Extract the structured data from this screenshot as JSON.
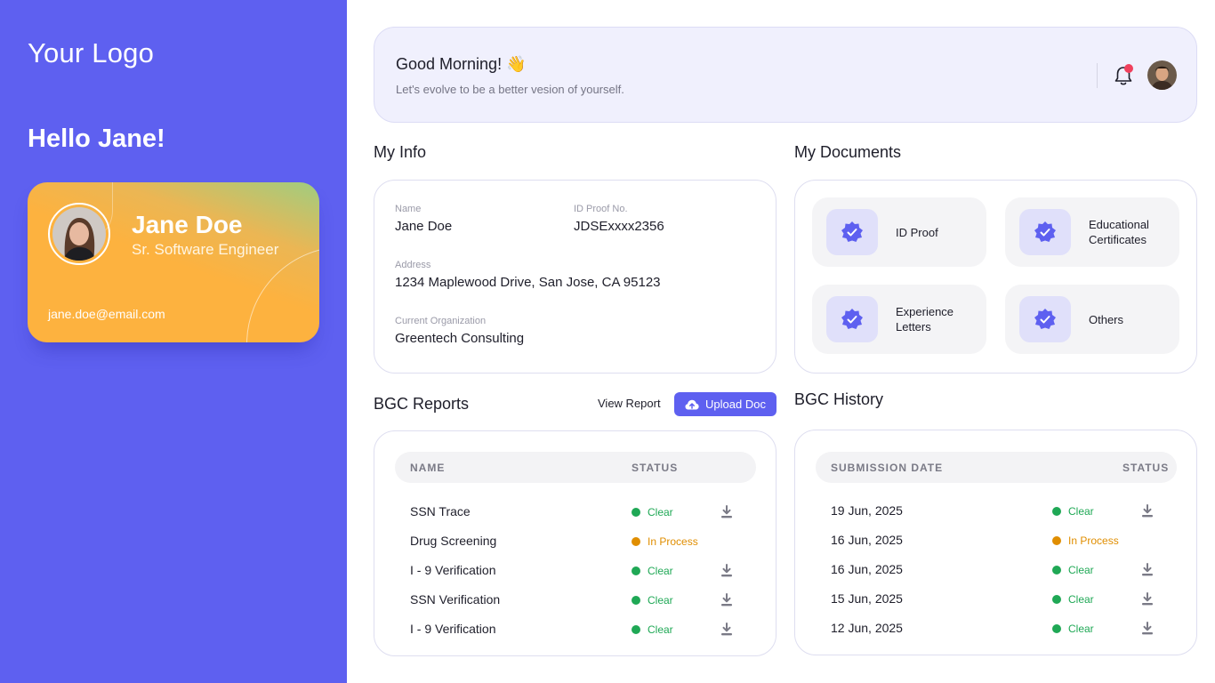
{
  "sidebar": {
    "logo": "Your Logo",
    "hello": "Hello Jane!",
    "card": {
      "name": "Jane Doe",
      "role": "Sr. Software Engineer",
      "email": "jane.doe@email.com"
    }
  },
  "header": {
    "greeting": "Good Morning! 👋",
    "subtitle": "Let's evolve to be a better vesion of yourself."
  },
  "my_info": {
    "title": "My Info",
    "name_label": "Name",
    "name_value": "Jane Doe",
    "id_label": "ID Proof No.",
    "id_value": "JDSExxxx2356",
    "address_label": "Address",
    "address_value": "1234 Maplewood Drive, San Jose, CA 95123",
    "org_label": "Current Organization",
    "org_value": "Greentech Consulting"
  },
  "documents": {
    "title": "My Documents",
    "items": [
      {
        "label": "ID Proof"
      },
      {
        "label": "Educational Certificates"
      },
      {
        "label": "Experience Letters"
      },
      {
        "label": "Others"
      }
    ]
  },
  "bgc_reports": {
    "title": "BGC Reports",
    "view_report": "View Report",
    "upload_doc": "Upload Doc",
    "col_name": "NAME",
    "col_status": "STATUS",
    "rows": [
      {
        "name": "SSN Trace",
        "status": "Clear"
      },
      {
        "name": "Drug Screening",
        "status": "In Process"
      },
      {
        "name": "I - 9 Verification",
        "status": "Clear"
      },
      {
        "name": "SSN Verification",
        "status": "Clear"
      },
      {
        "name": "I - 9 Verification",
        "status": "Clear"
      }
    ]
  },
  "bgc_history": {
    "title": "BGC History",
    "col_date": "SUBMISSION DATE",
    "col_status": "STATUS",
    "rows": [
      {
        "date": "19 Jun, 2025",
        "status": "Clear"
      },
      {
        "date": "16 Jun, 2025",
        "status": "In Process"
      },
      {
        "date": "16 Jun, 2025",
        "status": "Clear"
      },
      {
        "date": "15 Jun, 2025",
        "status": "Clear"
      },
      {
        "date": "12 Jun, 2025",
        "status": "Clear"
      }
    ]
  },
  "colors": {
    "brand": "#5e60f0",
    "clear": "#1fa855",
    "in_process": "#e08e00",
    "notification": "#f0405d"
  }
}
